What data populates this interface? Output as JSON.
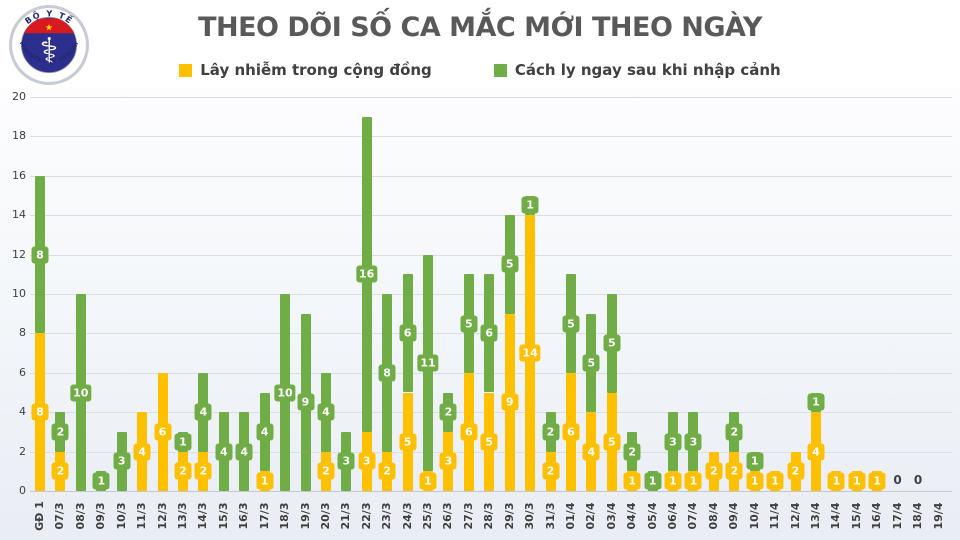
{
  "header": {
    "title": "THEO DÕI SỐ CA MẮC MỚI THEO NGÀY",
    "logo": {
      "top_text": "BỘ Y TẾ",
      "bottom_text": "MINISTRY OF HEALTH",
      "star": "★",
      "medical_symbol": "⚕",
      "ring_color": "#c7cbd4",
      "circle_color": "#2d2f8f",
      "band_color": "#d71920",
      "star_color": "#ffcc00"
    }
  },
  "legend": {
    "items": [
      {
        "label": "Lây nhiễm trong cộng đồng",
        "color": "#FFC000"
      },
      {
        "label": "Cách ly ngay sau khi nhập cảnh",
        "color": "#70AD47"
      }
    ]
  },
  "chart_data": {
    "type": "bar",
    "stacked": true,
    "title": "THEO DÕI SỐ CA MẮC MỚI THEO NGÀY",
    "xlabel": "",
    "ylabel": "",
    "ylim": [
      0,
      20
    ],
    "ytick_step": 2,
    "grid": true,
    "legend_position": "top",
    "categories": [
      "GĐ 1",
      "07/3",
      "08/3",
      "09/3",
      "10/3",
      "11/3",
      "12/3",
      "13/3",
      "14/3",
      "15/3",
      "16/3",
      "17/3",
      "18/3",
      "19/3",
      "20/3",
      "21/3",
      "22/3",
      "23/3",
      "24/3",
      "25/3",
      "26/3",
      "27/3",
      "28/3",
      "29/3",
      "30/3",
      "31/3",
      "01/4",
      "02/4",
      "03/4",
      "04/4",
      "05/4",
      "06/4",
      "07/4",
      "08/4",
      "09/4",
      "10/4",
      "11/4",
      "12/4",
      "13/4",
      "14/4",
      "15/4",
      "16/4",
      "17/4",
      "18/4",
      "19/4"
    ],
    "series": [
      {
        "name": "Lây nhiễm trong cộng đồng",
        "color": "#FFC000",
        "values": [
          8,
          2,
          0,
          0,
          0,
          4,
          6,
          2,
          2,
          0,
          0,
          1,
          0,
          0,
          2,
          0,
          3,
          2,
          5,
          1,
          3,
          6,
          5,
          9,
          14,
          2,
          6,
          4,
          5,
          1,
          0,
          1,
          1,
          2,
          2,
          1,
          1,
          2,
          4,
          1,
          1,
          1,
          0,
          0,
          null
        ]
      },
      {
        "name": "Cách ly ngay sau khi nhập cảnh",
        "color": "#70AD47",
        "values": [
          8,
          2,
          10,
          1,
          3,
          0,
          0,
          1,
          4,
          4,
          4,
          4,
          10,
          9,
          4,
          3,
          16,
          8,
          6,
          11,
          2,
          5,
          6,
          5,
          1,
          2,
          5,
          5,
          5,
          2,
          1,
          3,
          3,
          0,
          2,
          1,
          0,
          0,
          1,
          0,
          0,
          0,
          0,
          0,
          null
        ]
      }
    ],
    "zero_label": "0"
  }
}
